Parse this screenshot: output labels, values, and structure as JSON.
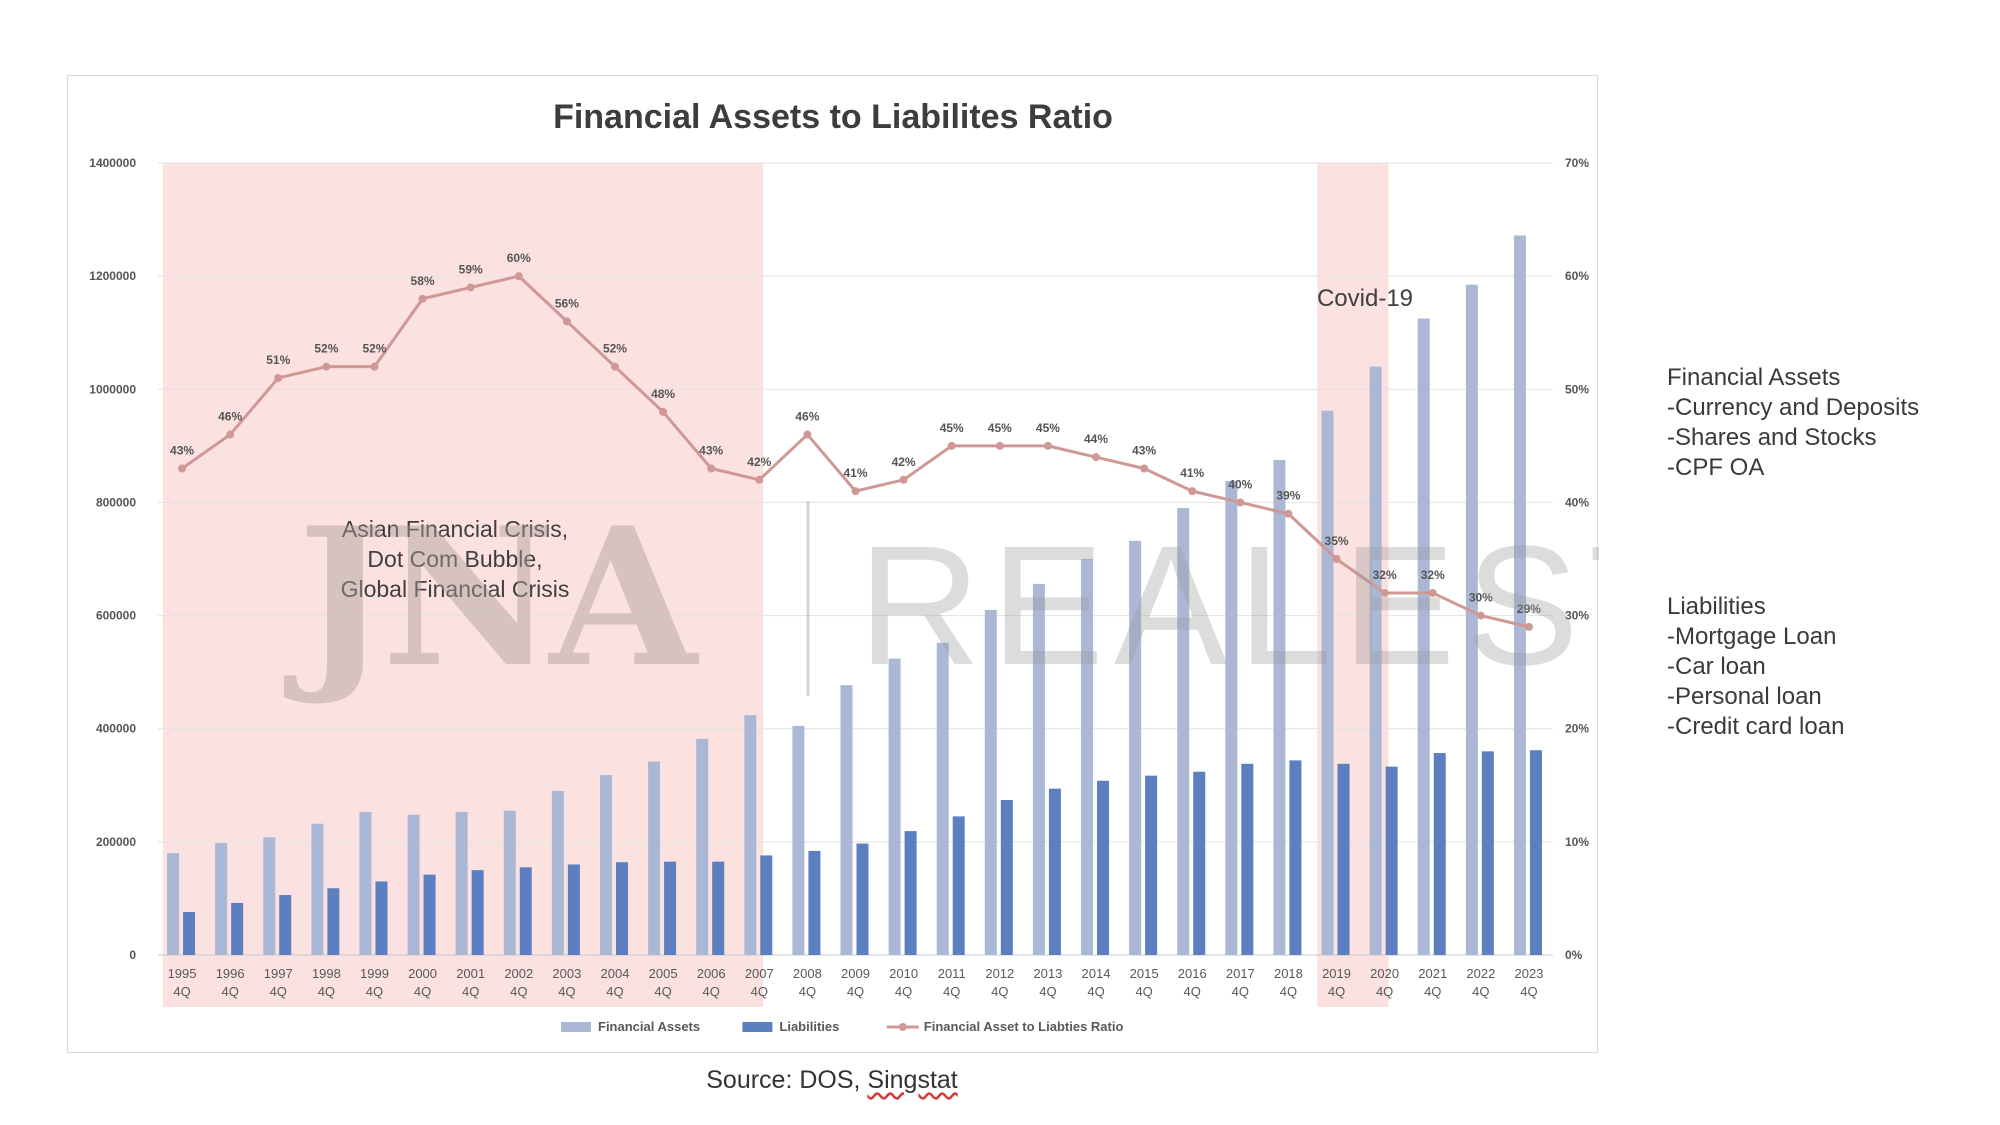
{
  "chart_data": {
    "type": "bar",
    "title": "Financial Assets to Liabilites Ratio",
    "categories": [
      "1995 4Q",
      "1996 4Q",
      "1997 4Q",
      "1998 4Q",
      "1999 4Q",
      "2000 4Q",
      "2001 4Q",
      "2002 4Q",
      "2003 4Q",
      "2004 4Q",
      "2005 4Q",
      "2006 4Q",
      "2007 4Q",
      "2008 4Q",
      "2009 4Q",
      "2010 4Q",
      "2011 4Q",
      "2012 4Q",
      "2013 4Q",
      "2014 4Q",
      "2015 4Q",
      "2016 4Q",
      "2017 4Q",
      "2018 4Q",
      "2019 4Q",
      "2020 4Q",
      "2021 4Q",
      "2022 4Q",
      "2023 4Q"
    ],
    "series": [
      {
        "name": "Financial Assets",
        "color": "#aab8d6",
        "values": [
          180000,
          198000,
          208000,
          232000,
          253000,
          248000,
          253000,
          255000,
          290000,
          318000,
          342000,
          382000,
          424000,
          405000,
          477000,
          524000,
          552000,
          610000,
          656000,
          700000,
          732000,
          790000,
          838000,
          875000,
          962000,
          1040000,
          1125000,
          1185000,
          1272000
        ]
      },
      {
        "name": "Liabilities",
        "color": "#5b7fbf",
        "values": [
          76000,
          92000,
          106000,
          118000,
          130000,
          142000,
          150000,
          155000,
          160000,
          164000,
          165000,
          165000,
          176000,
          184000,
          197000,
          219000,
          245000,
          274000,
          294000,
          308000,
          317000,
          324000,
          338000,
          344000,
          338000,
          333000,
          357000,
          360000,
          362000
        ]
      },
      {
        "name": "Financial Asset to Liabties Ratio",
        "color": "#d09894",
        "values": [
          43,
          46,
          51,
          52,
          52,
          58,
          59,
          60,
          56,
          52,
          48,
          43,
          42,
          46,
          41,
          42,
          45,
          45,
          45,
          44,
          43,
          41,
          40,
          39,
          35,
          32,
          32,
          30,
          29
        ]
      }
    ],
    "ratio_labels": [
      "43%",
      "46%",
      "51%",
      "52%",
      "52%",
      "58%",
      "59%",
      "60%",
      "56%",
      "52%",
      "48%",
      "43%",
      "42%",
      "46%",
      "41%",
      "42%",
      "45%",
      "45%",
      "45%",
      "44%",
      "43%",
      "41%",
      "40%",
      "39%",
      "35%",
      "32%",
      "32%",
      "30%",
      "29%"
    ],
    "y_left": {
      "ticks": [
        "0",
        "200000",
        "400000",
        "600000",
        "800000",
        "1000000",
        "1200000",
        "1400000"
      ],
      "lim": [
        0,
        1400000
      ]
    },
    "y_right": {
      "ticks": [
        "0%",
        "10%",
        "20%",
        "30%",
        "40%",
        "50%",
        "60%",
        "70%"
      ],
      "lim": [
        0,
        70
      ]
    },
    "shaded_periods": [
      {
        "from": "1995 4Q",
        "to": "2007 4Q",
        "color": "#fbe1df"
      },
      {
        "from": "2019 4Q",
        "to": "2020 4Q",
        "color": "#fbe1df"
      }
    ],
    "annotations": [
      {
        "lines": [
          "Asian Financial Crisis,",
          "Dot Com Bubble,",
          "Global Financial Crisis"
        ]
      },
      {
        "lines": [
          "Covid-19"
        ]
      }
    ],
    "watermark": "JNA REALESTATE",
    "legend_position": "bottom",
    "grid": true
  },
  "side_notes": {
    "financial_assets": [
      "Financial Assets",
      "-Currency and Deposits",
      "-Shares and Stocks",
      "-CPF OA"
    ],
    "liabilities": [
      "Liabilities",
      "-Mortgage Loan",
      "-Car loan",
      "-Personal loan",
      "-Credit card loan"
    ]
  },
  "source": {
    "prefix": "Source: DOS, ",
    "underlined": "Singstat"
  }
}
